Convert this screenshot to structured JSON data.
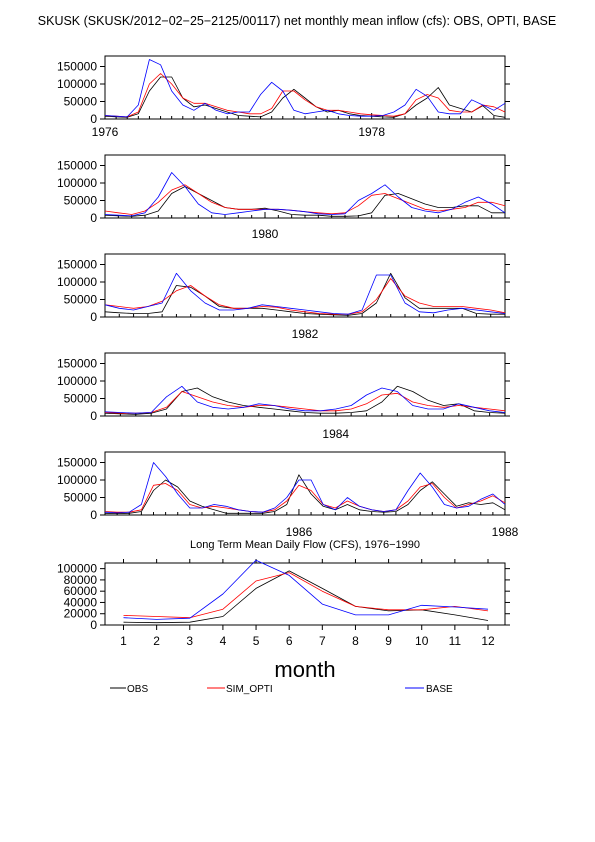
{
  "page": {
    "title": "SKUSK (SKUSK/2012−02−25−2125/00117) net monthly mean inflow (cfs): OBS, OPTI, BASE"
  },
  "legend": [
    {
      "name": "OBS",
      "color": "#000000"
    },
    {
      "name": "SIM_OPTI",
      "color": "#ff0000"
    },
    {
      "name": "BASE",
      "color": "#0000ff"
    }
  ],
  "chart_data": [
    {
      "type": "line",
      "year_labels": [
        "1976",
        "1978"
      ],
      "x_start": "1976-01",
      "ylim": [
        0,
        180000
      ],
      "yticks": [
        0,
        50000,
        100000,
        150000
      ],
      "ytick_labels": [
        "0",
        "50000",
        "100000",
        "150000"
      ],
      "series": [
        {
          "name": "OBS",
          "values": [
            8000,
            6000,
            5000,
            15000,
            80000,
            120000,
            120000,
            60000,
            35000,
            40000,
            30000,
            20000,
            10000,
            8000,
            6000,
            20000,
            60000,
            85000,
            60000,
            35000,
            20000,
            25000,
            15000,
            10000,
            8000,
            6000,
            5000,
            15000,
            40000,
            60000,
            90000,
            40000,
            30000,
            20000,
            38000,
            10000,
            5000
          ]
        },
        {
          "name": "SIM_OPTI",
          "values": [
            10000,
            8000,
            6000,
            20000,
            100000,
            130000,
            100000,
            60000,
            45000,
            45000,
            35000,
            25000,
            20000,
            15000,
            15000,
            30000,
            80000,
            80000,
            55000,
            35000,
            25000,
            25000,
            20000,
            15000,
            12000,
            10000,
            8000,
            15000,
            55000,
            70000,
            60000,
            25000,
            20000,
            20000,
            40000,
            35000,
            20000
          ]
        },
        {
          "name": "BASE",
          "values": [
            10000,
            8000,
            6000,
            40000,
            170000,
            155000,
            80000,
            40000,
            25000,
            45000,
            25000,
            15000,
            20000,
            20000,
            70000,
            105000,
            80000,
            25000,
            15000,
            20000,
            25000,
            15000,
            10000,
            8000,
            8000,
            10000,
            20000,
            40000,
            85000,
            65000,
            20000,
            15000,
            15000,
            55000,
            40000,
            25000,
            45000
          ]
        }
      ]
    },
    {
      "type": "line",
      "year_labels": [
        "1980"
      ],
      "x_start": "1979-01",
      "ylim": [
        0,
        180000
      ],
      "yticks": [
        0,
        50000,
        100000,
        150000
      ],
      "ytick_labels": [
        "0",
        "50000",
        "100000",
        "150000"
      ],
      "series": [
        {
          "name": "OBS",
          "values": [
            8000,
            6000,
            5000,
            8000,
            20000,
            70000,
            90000,
            70000,
            50000,
            30000,
            25000,
            25000,
            28000,
            20000,
            10000,
            8000,
            8000,
            5000,
            5000,
            6000,
            15000,
            65000,
            70000,
            55000,
            40000,
            30000,
            30000,
            35000,
            35000,
            15000,
            15000
          ]
        },
        {
          "name": "SIM_OPTI",
          "values": [
            20000,
            15000,
            10000,
            20000,
            45000,
            80000,
            95000,
            70000,
            45000,
            30000,
            25000,
            25000,
            25000,
            25000,
            22000,
            18000,
            15000,
            12000,
            15000,
            35000,
            65000,
            70000,
            55000,
            40000,
            25000,
            20000,
            25000,
            30000,
            45000,
            45000,
            35000
          ]
        },
        {
          "name": "BASE",
          "values": [
            10000,
            8000,
            6000,
            15000,
            60000,
            130000,
            90000,
            40000,
            15000,
            10000,
            15000,
            20000,
            25000,
            25000,
            22000,
            18000,
            12000,
            10000,
            12000,
            50000,
            70000,
            95000,
            60000,
            30000,
            20000,
            15000,
            25000,
            45000,
            60000,
            40000,
            15000
          ]
        }
      ]
    },
    {
      "type": "line",
      "year_labels": [
        "1982"
      ],
      "x_start": "1980-11",
      "ylim": [
        0,
        180000
      ],
      "yticks": [
        0,
        50000,
        100000,
        150000
      ],
      "ytick_labels": [
        "0",
        "50000",
        "100000",
        "150000"
      ],
      "series": [
        {
          "name": "OBS",
          "values": [
            15000,
            12000,
            10000,
            10000,
            15000,
            90000,
            85000,
            60000,
            30000,
            25000,
            25000,
            25000,
            20000,
            15000,
            10000,
            8000,
            6000,
            5000,
            10000,
            40000,
            125000,
            55000,
            25000,
            25000,
            25000,
            25000,
            10000,
            8000,
            8000
          ]
        },
        {
          "name": "SIM_OPTI",
          "values": [
            35000,
            30000,
            25000,
            30000,
            45000,
            75000,
            90000,
            60000,
            35000,
            25000,
            25000,
            30000,
            28000,
            20000,
            15000,
            10000,
            8000,
            8000,
            15000,
            50000,
            110000,
            60000,
            40000,
            30000,
            30000,
            30000,
            25000,
            20000,
            12000
          ]
        },
        {
          "name": "BASE",
          "values": [
            35000,
            25000,
            20000,
            30000,
            40000,
            125000,
            75000,
            40000,
            20000,
            20000,
            25000,
            35000,
            30000,
            25000,
            20000,
            15000,
            10000,
            8000,
            20000,
            120000,
            120000,
            40000,
            15000,
            12000,
            20000,
            25000,
            20000,
            15000,
            10000
          ]
        }
      ]
    },
    {
      "type": "line",
      "year_labels": [
        "1984"
      ],
      "x_start": "1982-10",
      "ylim": [
        0,
        180000
      ],
      "yticks": [
        0,
        50000,
        100000,
        150000
      ],
      "ytick_labels": [
        "0",
        "50000",
        "100000",
        "150000"
      ],
      "series": [
        {
          "name": "OBS",
          "values": [
            8000,
            6000,
            5000,
            8000,
            20000,
            70000,
            80000,
            55000,
            40000,
            30000,
            25000,
            20000,
            15000,
            10000,
            8000,
            8000,
            10000,
            15000,
            40000,
            85000,
            70000,
            45000,
            30000,
            35000,
            15000,
            10000,
            8000
          ]
        },
        {
          "name": "SIM_OPTI",
          "values": [
            10000,
            8000,
            8000,
            10000,
            25000,
            70000,
            55000,
            40000,
            30000,
            25000,
            30000,
            30000,
            25000,
            20000,
            15000,
            15000,
            20000,
            35000,
            60000,
            65000,
            40000,
            30000,
            25000,
            30000,
            25000,
            20000,
            15000
          ]
        },
        {
          "name": "BASE",
          "values": [
            12000,
            10000,
            8000,
            10000,
            55000,
            85000,
            40000,
            25000,
            20000,
            25000,
            35000,
            30000,
            20000,
            15000,
            15000,
            20000,
            30000,
            60000,
            80000,
            70000,
            30000,
            20000,
            20000,
            35000,
            25000,
            15000,
            10000
          ]
        }
      ]
    },
    {
      "type": "line",
      "year_labels": [
        "1986",
        "1988"
      ],
      "x_start": "1984-09",
      "ylim": [
        0,
        180000
      ],
      "yticks": [
        0,
        50000,
        100000,
        150000
      ],
      "ytick_labels": [
        "0",
        "50000",
        "100000",
        "150000"
      ],
      "series": [
        {
          "name": "OBS",
          "values": [
            5000,
            4000,
            5000,
            10000,
            70000,
            100000,
            80000,
            40000,
            25000,
            15000,
            5000,
            5000,
            5000,
            5000,
            10000,
            30000,
            115000,
            60000,
            25000,
            15000,
            30000,
            15000,
            10000,
            8000,
            10000,
            30000,
            70000,
            95000,
            60000,
            25000,
            35000,
            30000,
            35000,
            15000
          ]
        },
        {
          "name": "SIM_OPTI",
          "values": [
            10000,
            8000,
            8000,
            15000,
            85000,
            90000,
            70000,
            30000,
            20000,
            25000,
            20000,
            15000,
            10000,
            8000,
            15000,
            40000,
            85000,
            70000,
            30000,
            20000,
            40000,
            25000,
            15000,
            10000,
            15000,
            40000,
            80000,
            90000,
            50000,
            20000,
            30000,
            40000,
            55000,
            35000
          ]
        },
        {
          "name": "BASE",
          "values": [
            8000,
            6000,
            8000,
            30000,
            150000,
            110000,
            60000,
            20000,
            20000,
            30000,
            25000,
            15000,
            10000,
            8000,
            20000,
            50000,
            100000,
            100000,
            30000,
            15000,
            50000,
            25000,
            15000,
            10000,
            15000,
            70000,
            120000,
            80000,
            30000,
            20000,
            25000,
            45000,
            60000,
            30000
          ]
        }
      ]
    },
    {
      "type": "line",
      "title": "Long Term Mean Daily Flow (CFS), 1976−1990",
      "xlabel": "month",
      "categories": [
        "1",
        "2",
        "3",
        "4",
        "5",
        "6",
        "7",
        "8",
        "9",
        "10",
        "11",
        "12"
      ],
      "ylim": [
        0,
        110000
      ],
      "yticks": [
        0,
        20000,
        40000,
        60000,
        80000,
        100000
      ],
      "ytick_labels": [
        "0",
        "20000",
        "40000",
        "60000",
        "80000",
        "100000"
      ],
      "series": [
        {
          "name": "OBS",
          "values": [
            5000,
            4000,
            5000,
            15000,
            65000,
            96000,
            65000,
            33000,
            25000,
            27000,
            18000,
            8000
          ]
        },
        {
          "name": "SIM_OPTI",
          "values": [
            17000,
            15000,
            13000,
            28000,
            78000,
            93000,
            60000,
            33000,
            27000,
            27000,
            33000,
            25000
          ]
        },
        {
          "name": "BASE",
          "values": [
            13000,
            10000,
            12000,
            55000,
            115000,
            88000,
            37000,
            18000,
            18000,
            35000,
            32000,
            28000
          ]
        }
      ]
    }
  ]
}
